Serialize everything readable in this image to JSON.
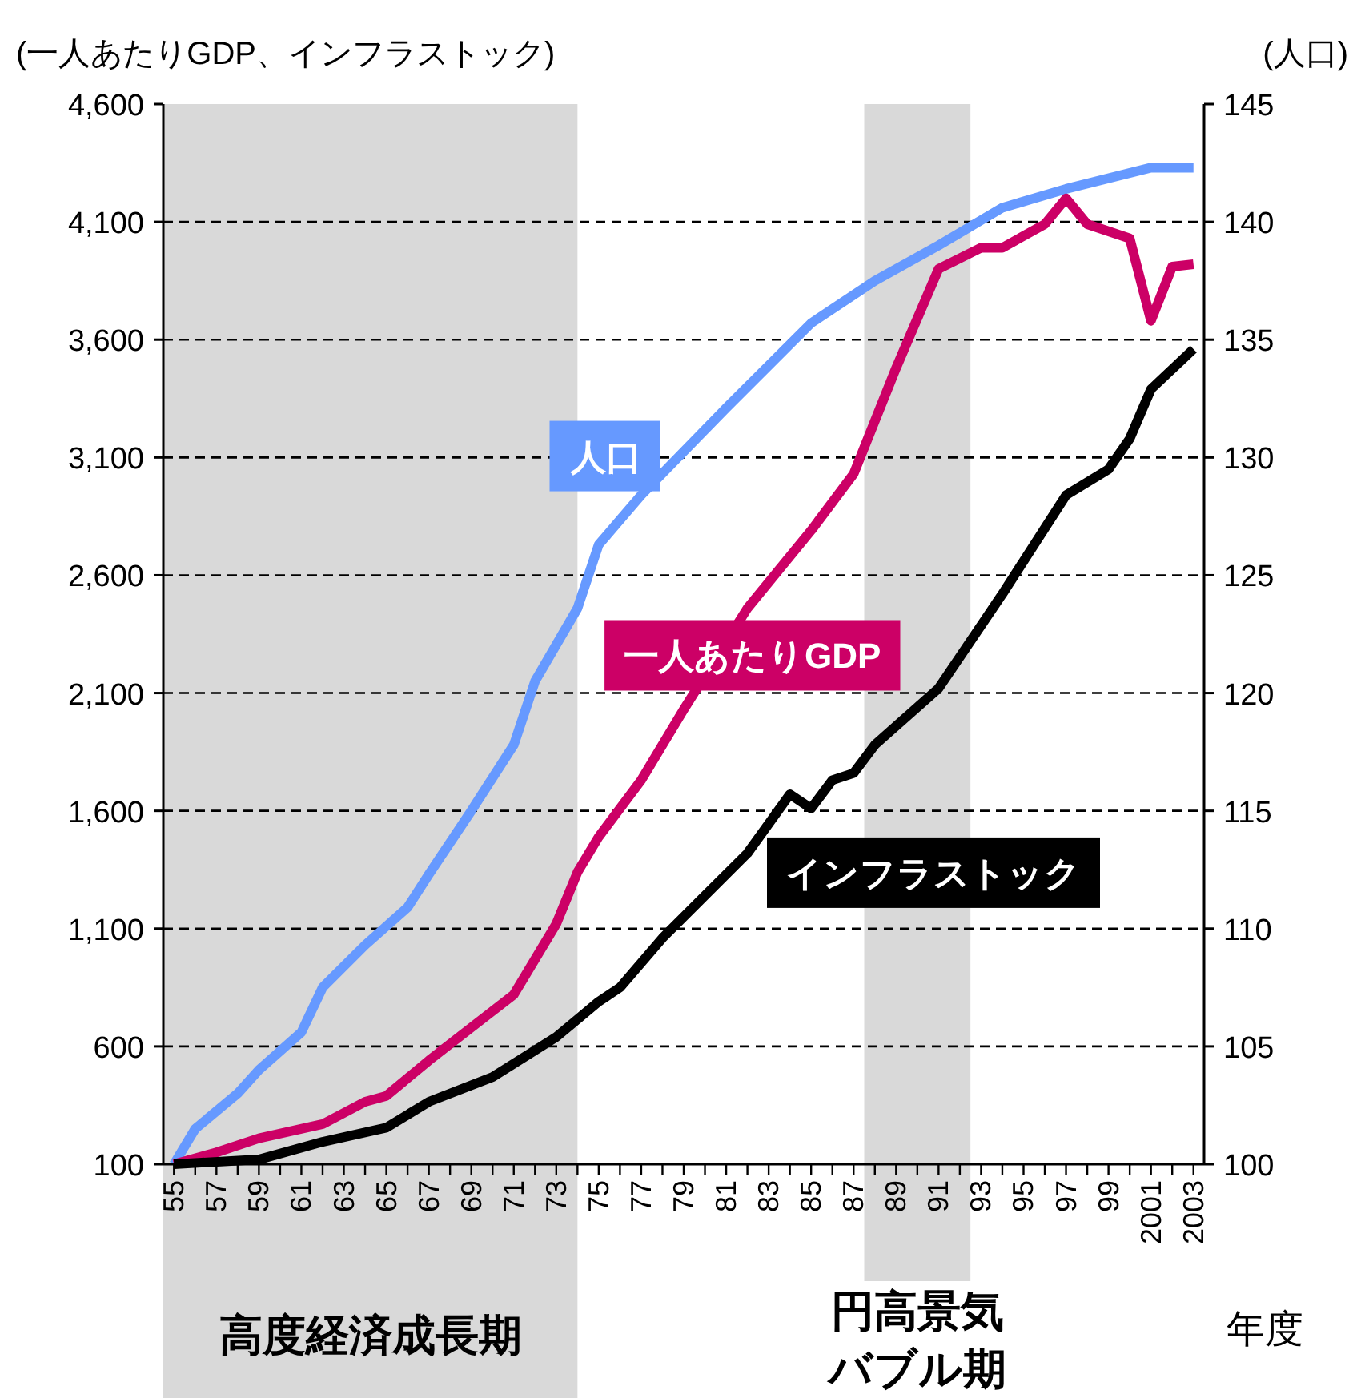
{
  "chart_data": {
    "type": "line",
    "ylabel": "(一人あたりGDP、インフラストック)",
    "y2label": "(人口)",
    "xlabel": "年度",
    "xlim": [
      1954.5,
      2003.5
    ],
    "xticks": [
      {
        "value": 1955,
        "label": "55"
      },
      {
        "value": 1956,
        "label": null
      },
      {
        "value": 1957,
        "label": "57"
      },
      {
        "value": 1958,
        "label": null
      },
      {
        "value": 1959,
        "label": "59"
      },
      {
        "value": 1960,
        "label": null
      },
      {
        "value": 1961,
        "label": "61"
      },
      {
        "value": 1962,
        "label": null
      },
      {
        "value": 1963,
        "label": "63"
      },
      {
        "value": 1964,
        "label": null
      },
      {
        "value": 1965,
        "label": "65"
      },
      {
        "value": 1966,
        "label": null
      },
      {
        "value": 1967,
        "label": "67"
      },
      {
        "value": 1968,
        "label": null
      },
      {
        "value": 1969,
        "label": "69"
      },
      {
        "value": 1970,
        "label": null
      },
      {
        "value": 1971,
        "label": "71"
      },
      {
        "value": 1972,
        "label": null
      },
      {
        "value": 1973,
        "label": "73"
      },
      {
        "value": 1974,
        "label": null
      },
      {
        "value": 1975,
        "label": "75"
      },
      {
        "value": 1976,
        "label": null
      },
      {
        "value": 1977,
        "label": "77"
      },
      {
        "value": 1978,
        "label": null
      },
      {
        "value": 1979,
        "label": "79"
      },
      {
        "value": 1980,
        "label": null
      },
      {
        "value": 1981,
        "label": "81"
      },
      {
        "value": 1982,
        "label": null
      },
      {
        "value": 1983,
        "label": "83"
      },
      {
        "value": 1984,
        "label": null
      },
      {
        "value": 1985,
        "label": "85"
      },
      {
        "value": 1986,
        "label": null
      },
      {
        "value": 1987,
        "label": "87"
      },
      {
        "value": 1988,
        "label": null
      },
      {
        "value": 1989,
        "label": "89"
      },
      {
        "value": 1990,
        "label": null
      },
      {
        "value": 1991,
        "label": "91"
      },
      {
        "value": 1992,
        "label": null
      },
      {
        "value": 1993,
        "label": "93"
      },
      {
        "value": 1994,
        "label": null
      },
      {
        "value": 1995,
        "label": "95"
      },
      {
        "value": 1996,
        "label": null
      },
      {
        "value": 1997,
        "label": "97"
      },
      {
        "value": 1998,
        "label": null
      },
      {
        "value": 1999,
        "label": "99"
      },
      {
        "value": 2000,
        "label": null
      },
      {
        "value": 2001,
        "label": "2001"
      },
      {
        "value": 2002,
        "label": null
      },
      {
        "value": 2003,
        "label": "2003"
      }
    ],
    "ylim": [
      100,
      4600
    ],
    "yticks": [
      100,
      600,
      {
        "value": 1100,
        "label": "1,100"
      },
      {
        "value": 1600,
        "label": "1,600"
      },
      {
        "value": 2100,
        "label": "2,100"
      },
      {
        "value": 2600,
        "label": "2,600"
      },
      {
        "value": 3100,
        "label": "3,100"
      },
      {
        "value": 3600,
        "label": "3,600"
      },
      {
        "value": 4100,
        "label": "4,100"
      },
      {
        "value": 4600,
        "label": "4,600"
      }
    ],
    "y2lim": [
      100,
      145
    ],
    "y2ticks": [
      100,
      105,
      110,
      115,
      120,
      125,
      130,
      135,
      140,
      145
    ],
    "grid": "y",
    "legend": false,
    "marker": "none",
    "line_style": "solid",
    "bands": [
      {
        "axis": "x",
        "from": 1954.5,
        "to": 1974,
        "label": "高度経済成長期",
        "color": "#d9d9d9"
      },
      {
        "axis": "x",
        "from": 1987.5,
        "to": 1992.5,
        "label": "円高景気バブル期",
        "color": "#d9d9d9"
      }
    ],
    "series": [
      {
        "name": "人口",
        "color": "#6699ff",
        "axis": "y2",
        "x": [
          1955,
          1956,
          1958,
          1959,
          1961,
          1962,
          1964,
          1966,
          1967,
          1969,
          1971,
          1972,
          1974,
          1975,
          1977,
          1981,
          1985,
          1988,
          1991,
          1994,
          1997,
          2001,
          2003
        ],
        "values": [
          100,
          101.5,
          103,
          104,
          105.6,
          107.5,
          109.3,
          110.9,
          112.3,
          115,
          117.8,
          120.5,
          123.6,
          126.3,
          128.4,
          132.1,
          135.7,
          137.5,
          139,
          140.6,
          141.4,
          142.3,
          142.3
        ]
      },
      {
        "name": "一人あたりGDP",
        "color": "#cc0066",
        "x": [
          1955,
          1957,
          1959,
          1962,
          1964,
          1965,
          1967,
          1971,
          1973,
          1974,
          1975,
          1977,
          1979,
          1982,
          1985,
          1987,
          1989,
          1991,
          1993,
          1994,
          1996,
          1997,
          1998,
          2000,
          2001,
          2002,
          2003
        ],
        "values": [
          100,
          150,
          210,
          270,
          365,
          390,
          540,
          820,
          1120,
          1340,
          1490,
          1730,
          2030,
          2460,
          2790,
          3030,
          3480,
          3900,
          3990,
          3990,
          4090,
          4200,
          4090,
          4030,
          3680,
          3910,
          3920
        ]
      },
      {
        "name": "インフラストック",
        "color": "#000000",
        "x": [
          1955,
          1959,
          1962,
          1965,
          1967,
          1970,
          1973,
          1975,
          1976,
          1978,
          1980,
          1982,
          1984,
          1985,
          1986,
          1987,
          1988,
          1991,
          1994,
          1997,
          1999,
          2000,
          2001,
          2003
        ],
        "values": [
          100,
          120,
          195,
          255,
          365,
          470,
          640,
          790,
          850,
          1060,
          1240,
          1420,
          1670,
          1610,
          1730,
          1760,
          1880,
          2120,
          2520,
          2940,
          3050,
          3180,
          3390,
          3560
        ]
      }
    ]
  }
}
